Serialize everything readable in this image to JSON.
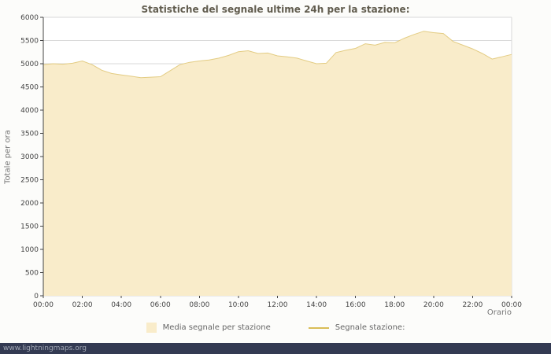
{
  "title": "Statistiche del segnale ultime 24h per la stazione:",
  "ylabel": "Totale per ora",
  "xlabel": "Orario",
  "watermark": "www.lightningmaps.org",
  "legend": [
    {
      "label": "Media segnale per stazione",
      "swatch": "area",
      "color": "#f9ecca"
    },
    {
      "label": "Segnale stazione:",
      "swatch": "line",
      "color": "#d9bd56"
    }
  ],
  "chart_data": {
    "type": "area",
    "title": "Statistiche del segnale ultime 24h per la stazione:",
    "xlabel": "Orario",
    "ylabel": "Totale per ora",
    "ylim": [
      0,
      6000
    ],
    "ytick_step": 500,
    "grid": true,
    "legend_position": "bottom",
    "fill_color": "#f9ecca",
    "line_color": "#e3cc83",
    "xticks": [
      "00:00",
      "02:00",
      "04:00",
      "06:00",
      "08:00",
      "10:00",
      "12:00",
      "14:00",
      "16:00",
      "18:00",
      "20:00",
      "22:00",
      "00:00"
    ],
    "series_name": "Media segnale per stazione",
    "x_hours": [
      0,
      0.5,
      1,
      1.5,
      2,
      2.5,
      3,
      3.5,
      4,
      4.5,
      5,
      5.5,
      6,
      6.5,
      7,
      7.5,
      8,
      8.5,
      9,
      9.5,
      10,
      10.5,
      11,
      11.5,
      12,
      12.5,
      13,
      13.5,
      14,
      14.5,
      15,
      15.5,
      16,
      16.5,
      17,
      17.5,
      18,
      18.5,
      19,
      19.5,
      20,
      20.5,
      21,
      21.5,
      22,
      22.5,
      23,
      23.5,
      24
    ],
    "values": [
      4980,
      5000,
      4990,
      5010,
      5060,
      4980,
      4860,
      4790,
      4760,
      4730,
      4700,
      4710,
      4720,
      4850,
      4980,
      5030,
      5060,
      5080,
      5120,
      5180,
      5260,
      5280,
      5220,
      5230,
      5170,
      5150,
      5120,
      5060,
      5000,
      5010,
      5240,
      5290,
      5330,
      5430,
      5400,
      5460,
      5450,
      5550,
      5630,
      5700,
      5670,
      5650,
      5480,
      5400,
      5320,
      5220,
      5100,
      5150,
      5200
    ]
  }
}
